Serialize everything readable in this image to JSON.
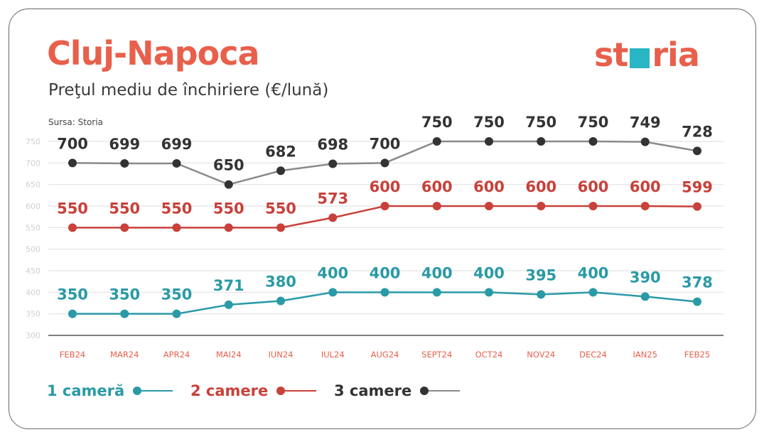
{
  "header": {
    "title": "Cluj-Napoca",
    "subtitle": "Preţul mediu de închiriere (€/lună)",
    "source": "Sursa: Storia",
    "logo": "storia"
  },
  "chart_data": {
    "type": "line",
    "title": "Cluj-Napoca",
    "subtitle": "Preţul mediu de închiriere (€/lună)",
    "x": [
      "FEB24",
      "MAR24",
      "APR24",
      "MAI24",
      "IUN24",
      "IUL24",
      "AUG24",
      "SEPT24",
      "OCT24",
      "NOV24",
      "DEC24",
      "IAN25",
      "FEB25"
    ],
    "yticks": [
      300,
      350,
      400,
      450,
      500,
      550,
      600,
      650,
      700,
      750
    ],
    "ylim": [
      300,
      750
    ],
    "grid": true,
    "legend_position": "bottom-left",
    "series": [
      {
        "name": "1 cameră",
        "color": "#2a9aa6",
        "values": [
          350,
          350,
          350,
          371,
          380,
          400,
          400,
          400,
          400,
          395,
          400,
          390,
          378
        ]
      },
      {
        "name": "2 camere",
        "color": "#c8413a",
        "values": [
          550,
          550,
          550,
          550,
          550,
          573,
          600,
          600,
          600,
          600,
          600,
          600,
          599
        ]
      },
      {
        "name": "3 camere",
        "color": "#333333",
        "line_color": "#8a8a8a",
        "values": [
          700,
          699,
          699,
          650,
          682,
          698,
          700,
          750,
          750,
          750,
          750,
          749,
          728
        ]
      }
    ]
  }
}
